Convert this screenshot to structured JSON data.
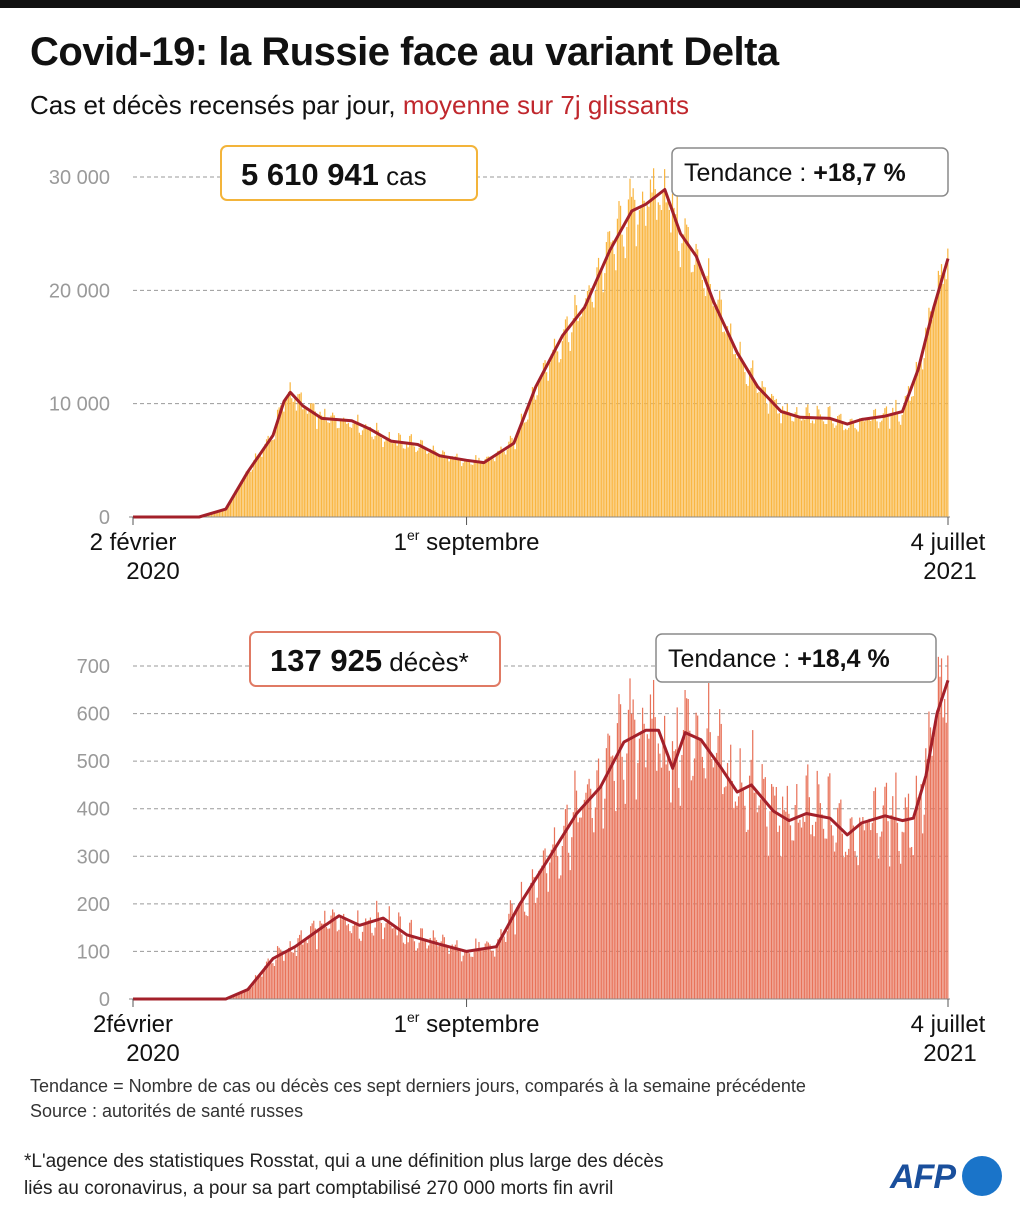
{
  "title": "Covid-19: la Russie face au variant Delta",
  "subtitle": {
    "main": "Cas et décès recensés par jour,",
    "highlight": "moyenne sur 7j glissants"
  },
  "colors": {
    "cases_bar": "#f9b642",
    "deaths_bar": "#e8735a",
    "average_line": "#a3202a",
    "subtitle_accent": "#c0272d",
    "logo": "#1a74c9"
  },
  "chart_data": [
    {
      "type": "bar",
      "name": "cases",
      "yticks": [
        "30 000",
        "20 000",
        "10 000",
        "0"
      ],
      "ylim": [
        0,
        30000
      ],
      "x_labels": [
        {
          "line1": "2 février",
          "line2": "2020"
        },
        {
          "line1": "1er septembre",
          "line2": ""
        },
        {
          "line1": "4 juillet",
          "line2": "2021"
        }
      ],
      "x_range": [
        "2020-02-02",
        "2021-07-04"
      ],
      "total": {
        "value": "5 610 941",
        "unit": "cas"
      },
      "trend": {
        "label": "Tendance :",
        "value": "+18,7 %"
      },
      "series_average": [
        [
          "2020-02-02",
          0
        ],
        [
          "2020-03-15",
          0
        ],
        [
          "2020-04-01",
          700
        ],
        [
          "2020-04-15",
          4000
        ],
        [
          "2020-05-01",
          7200
        ],
        [
          "2020-05-08",
          10200
        ],
        [
          "2020-05-12",
          11000
        ],
        [
          "2020-05-20",
          9800
        ],
        [
          "2020-06-01",
          8700
        ],
        [
          "2020-06-20",
          8500
        ],
        [
          "2020-07-01",
          7800
        ],
        [
          "2020-07-15",
          6700
        ],
        [
          "2020-08-01",
          6400
        ],
        [
          "2020-08-15",
          5400
        ],
        [
          "2020-09-01",
          5000
        ],
        [
          "2020-09-12",
          4800
        ],
        [
          "2020-10-01",
          6500
        ],
        [
          "2020-10-15",
          11500
        ],
        [
          "2020-11-01",
          16000
        ],
        [
          "2020-11-15",
          18500
        ],
        [
          "2020-12-01",
          23500
        ],
        [
          "2020-12-15",
          27000
        ],
        [
          "2020-12-24",
          27600
        ],
        [
          "2021-01-05",
          28900
        ],
        [
          "2021-01-15",
          25000
        ],
        [
          "2021-01-25",
          23000
        ],
        [
          "2021-02-05",
          19000
        ],
        [
          "2021-02-20",
          14500
        ],
        [
          "2021-03-05",
          11500
        ],
        [
          "2021-03-20",
          9300
        ],
        [
          "2021-04-01",
          8800
        ],
        [
          "2021-04-20",
          8700
        ],
        [
          "2021-05-01",
          8200
        ],
        [
          "2021-05-10",
          8600
        ],
        [
          "2021-05-25",
          8900
        ],
        [
          "2021-06-05",
          9300
        ],
        [
          "2021-06-15",
          13000
        ],
        [
          "2021-06-25",
          18500
        ],
        [
          "2021-07-04",
          22800
        ]
      ]
    },
    {
      "type": "bar",
      "name": "deaths",
      "yticks": [
        "700",
        "600",
        "500",
        "400",
        "300",
        "200",
        "100",
        "0"
      ],
      "ylim": [
        0,
        700
      ],
      "x_labels": [
        {
          "line1": "2février",
          "line2": "2020"
        },
        {
          "line1": "1er septembre",
          "line2": ""
        },
        {
          "line1": "4 juillet",
          "line2": "2021"
        }
      ],
      "x_range": [
        "2020-02-02",
        "2021-07-04"
      ],
      "total": {
        "value": "137 925",
        "unit": "décès*"
      },
      "trend": {
        "label": "Tendance :",
        "value": "+18,4 %"
      },
      "series_average": [
        [
          "2020-02-02",
          0
        ],
        [
          "2020-04-01",
          0
        ],
        [
          "2020-04-15",
          20
        ],
        [
          "2020-05-01",
          85
        ],
        [
          "2020-05-15",
          110
        ],
        [
          "2020-06-01",
          150
        ],
        [
          "2020-06-12",
          175
        ],
        [
          "2020-06-25",
          155
        ],
        [
          "2020-07-10",
          170
        ],
        [
          "2020-07-25",
          135
        ],
        [
          "2020-08-15",
          115
        ],
        [
          "2020-09-01",
          100
        ],
        [
          "2020-09-20",
          110
        ],
        [
          "2020-10-05",
          200
        ],
        [
          "2020-10-25",
          305
        ],
        [
          "2020-11-10",
          390
        ],
        [
          "2020-11-25",
          445
        ],
        [
          "2020-12-10",
          540
        ],
        [
          "2020-12-24",
          565
        ],
        [
          "2021-01-01",
          565
        ],
        [
          "2021-01-10",
          485
        ],
        [
          "2021-01-18",
          560
        ],
        [
          "2021-01-28",
          545
        ],
        [
          "2021-02-10",
          485
        ],
        [
          "2021-02-20",
          435
        ],
        [
          "2021-03-01",
          450
        ],
        [
          "2021-03-15",
          395
        ],
        [
          "2021-03-25",
          375
        ],
        [
          "2021-04-05",
          390
        ],
        [
          "2021-04-20",
          380
        ],
        [
          "2021-05-01",
          345
        ],
        [
          "2021-05-10",
          370
        ],
        [
          "2021-05-25",
          385
        ],
        [
          "2021-06-05",
          375
        ],
        [
          "2021-06-12",
          380
        ],
        [
          "2021-06-20",
          470
        ],
        [
          "2021-06-27",
          600
        ],
        [
          "2021-07-04",
          670
        ]
      ]
    }
  ],
  "notes": {
    "tendance_def": "Tendance = Nombre de cas ou décès ces sept derniers jours, comparés à la semaine précédente",
    "source": "Source : autorités de santé russes"
  },
  "footnote": {
    "line1": "*L'agence des statistiques Rosstat, qui a une définition plus large des décès",
    "line2": "liés au coronavirus, a pour sa part comptabilisé 270 000 morts fin avril"
  },
  "logo": {
    "text": "AFP"
  }
}
